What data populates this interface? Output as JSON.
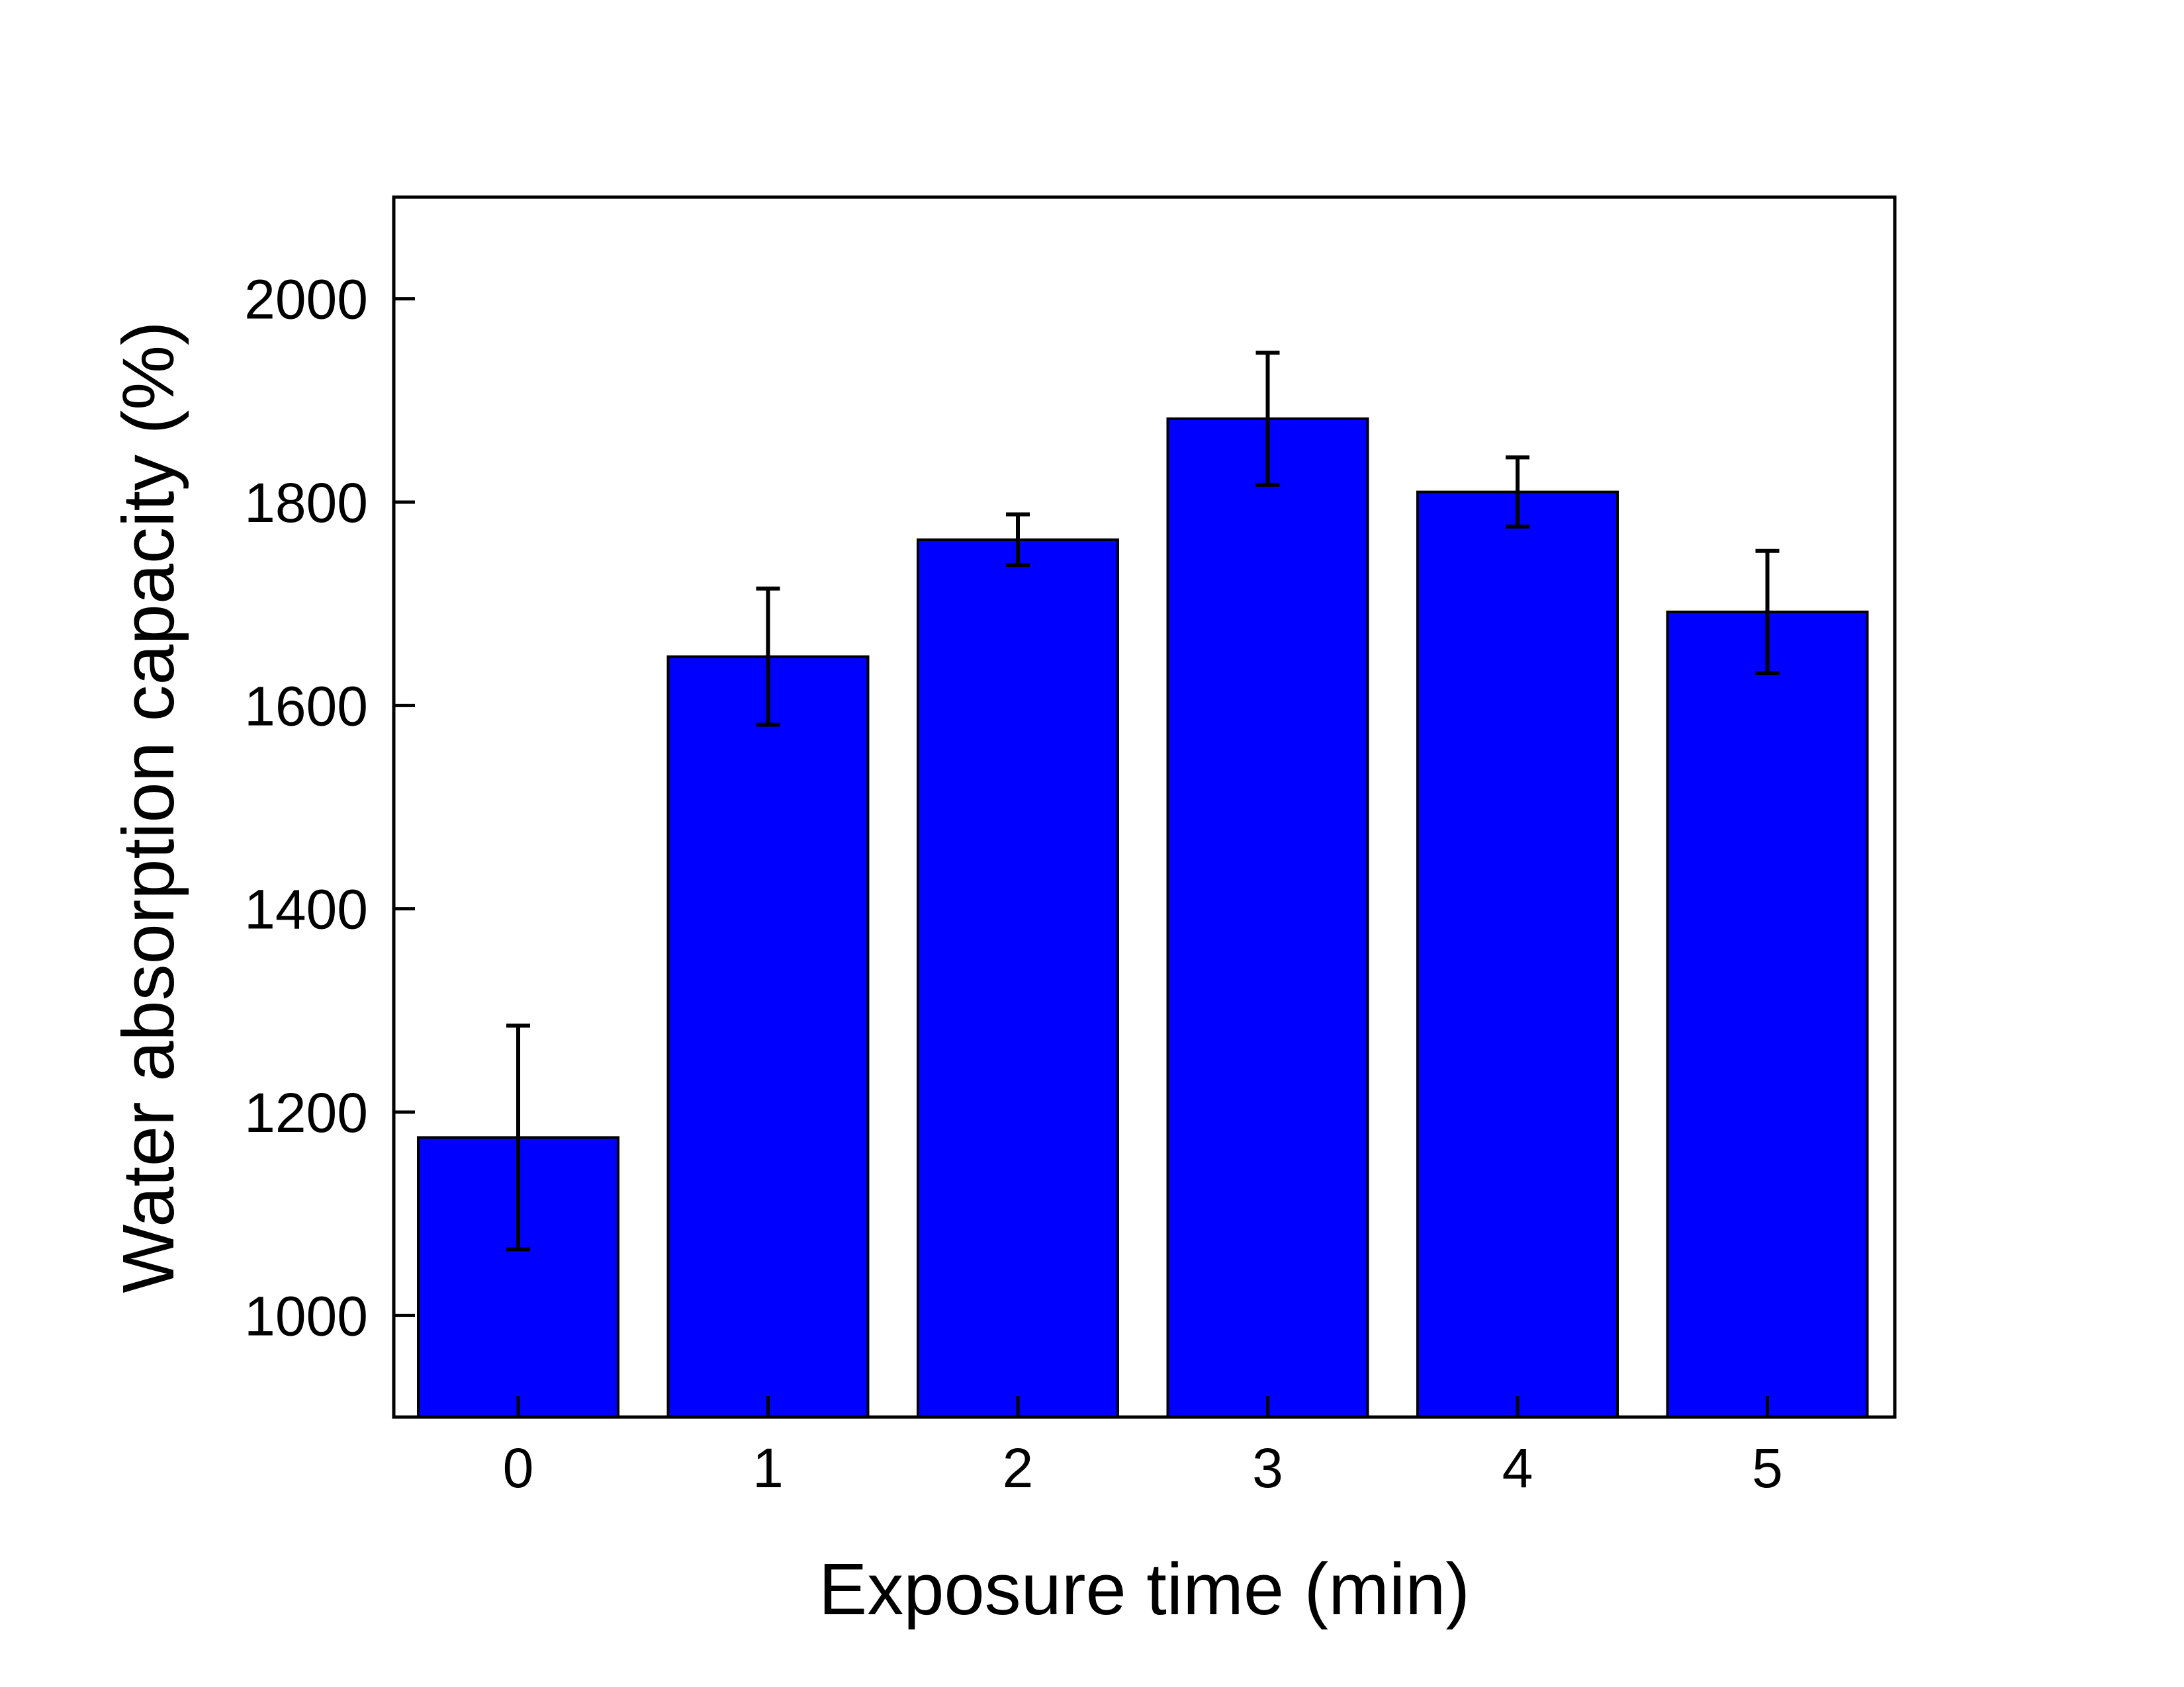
{
  "chart_data": {
    "type": "bar",
    "title": "",
    "xlabel": "Exposure time (min)",
    "ylabel": "Water absorption capacity (%)",
    "categories": [
      "0",
      "1",
      "2",
      "3",
      "4",
      "5"
    ],
    "values": [
      1175,
      1648,
      1763,
      1882,
      1810,
      1692
    ],
    "error": [
      110,
      67,
      25,
      65,
      34,
      60
    ],
    "ylim": [
      900,
      2100
    ],
    "yticks": [
      "1000",
      "1200",
      "1400",
      "1600",
      "1800",
      "2000"
    ],
    "bar_color": "#0000ff",
    "grid": false,
    "legend": "none"
  }
}
